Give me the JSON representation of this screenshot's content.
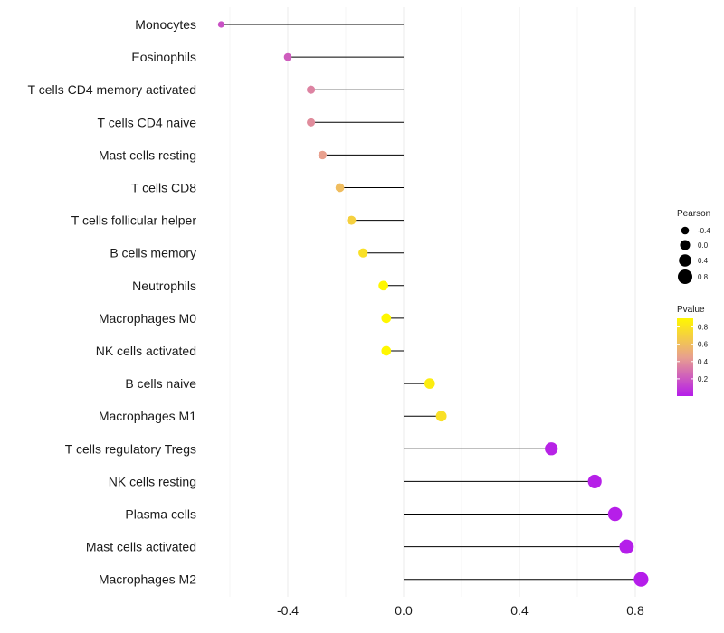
{
  "chart_data": {
    "type": "lollipop",
    "title": "",
    "xlabel": "",
    "ylabel": "",
    "xlim": [
      -0.6,
      0.82
    ],
    "x_ticks": [
      -0.4,
      0.0,
      0.4,
      0.8
    ],
    "x_tick_labels": [
      "-0.4",
      "0.0",
      "0.4",
      "0.8"
    ],
    "grid": true,
    "categories": [
      "Monocytes",
      "Eosinophils",
      "T cells CD4 memory activated",
      "T cells CD4 naive",
      "Mast cells resting",
      "T cells CD8",
      "T cells follicular helper",
      "B cells memory",
      "Neutrophils",
      "Macrophages M0",
      "NK cells activated",
      "B cells naive",
      "Macrophages M1",
      "T cells regulatory  Tregs ",
      "NK cells resting",
      "Plasma cells",
      "Mast cells activated",
      "Macrophages M2"
    ],
    "pearson": [
      -0.63,
      -0.4,
      -0.32,
      -0.32,
      -0.28,
      -0.22,
      -0.18,
      -0.14,
      -0.07,
      -0.06,
      -0.06,
      0.09,
      0.13,
      0.51,
      0.66,
      0.73,
      0.77,
      0.82
    ],
    "pvalue": [
      0.18,
      0.22,
      0.35,
      0.38,
      0.45,
      0.6,
      0.7,
      0.78,
      0.9,
      0.9,
      0.92,
      0.85,
      0.78,
      0.02,
      0.01,
      0.005,
      0.002,
      0.001
    ],
    "legend": {
      "size_title": "Pearson",
      "size_labels": [
        "-0.4",
        "0.0",
        "0.4",
        "0.8"
      ],
      "size_values": [
        -0.4,
        0.0,
        0.4,
        0.8
      ],
      "color_title": "Pvalue",
      "color_labels": [
        "0.8",
        "0.6",
        "0.4",
        "0.2"
      ],
      "color_values": [
        0.8,
        0.6,
        0.4,
        0.2
      ],
      "color_range": [
        0.0,
        0.9
      ],
      "colors": {
        "low": "#b51dea",
        "mid": "#e8a08e",
        "high": "#fff700"
      },
      "placement": "right"
    }
  }
}
